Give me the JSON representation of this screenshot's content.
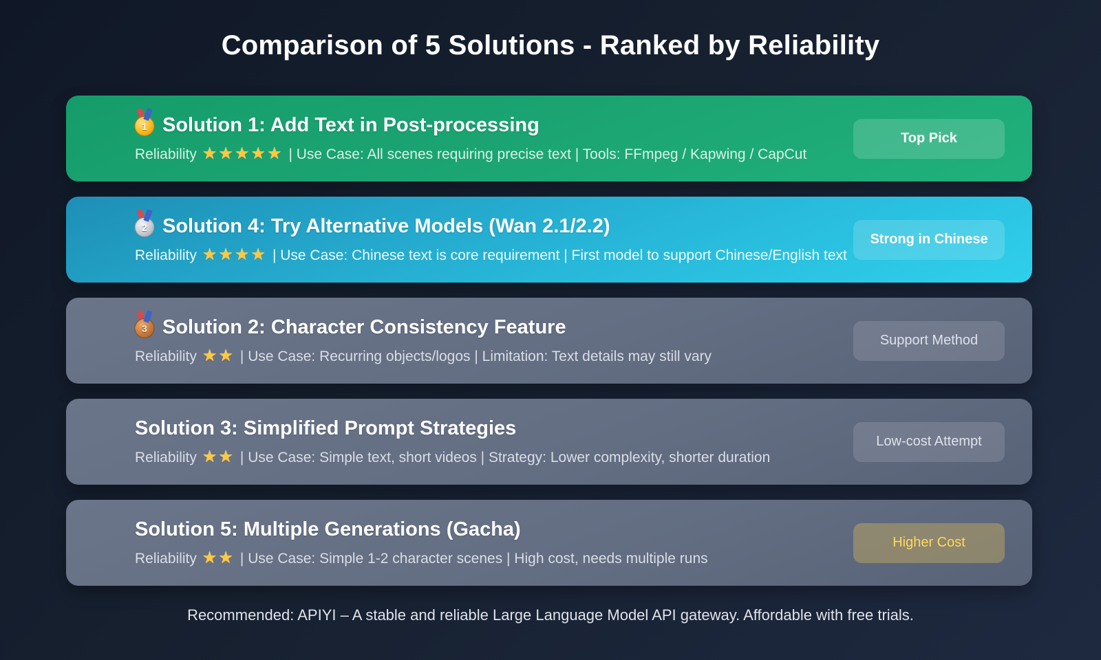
{
  "header": {
    "title": "Comparison of 5 Solutions - Ranked by Reliability"
  },
  "footer": {
    "text": "Recommended: APIYI – A stable and reliable Large Language Model API gateway. Affordable with free trials."
  },
  "colors": {
    "background": "#16202f",
    "card_green": "#1ca674",
    "card_cyan": "#27b6d8",
    "card_slate": "#636e83",
    "star": "#ffc83d",
    "badge_gold_text": "#ffd75e"
  },
  "cards": [
    {
      "medal": "gold",
      "medal_number": "1",
      "title": "Solution 1: Add Text in Post-processing",
      "reliability_label": "Reliability",
      "stars": 5,
      "details": "| Use Case: All scenes requiring precise text | Tools: FFmpeg / Kapwing / CapCut",
      "badge": "Top Pick",
      "theme": "green",
      "badge_style": "highlight"
    },
    {
      "medal": "silver",
      "medal_number": "2",
      "title": "Solution 4: Try Alternative Models (Wan 2.1/2.2)",
      "reliability_label": "Reliability",
      "stars": 4,
      "details": "| Use Case: Chinese text is core requirement | First model to support Chinese/English text",
      "badge": "Strong in Chinese",
      "theme": "cyan",
      "badge_style": "highlight"
    },
    {
      "medal": "bronze",
      "medal_number": "3",
      "title": "Solution 2: Character Consistency Feature",
      "reliability_label": "Reliability",
      "stars": 2,
      "details": "| Use Case: Recurring objects/logos | Limitation: Text details may still vary",
      "badge": "Support Method",
      "theme": "slate",
      "badge_style": "muted"
    },
    {
      "medal": null,
      "medal_number": null,
      "title": "Solution 3: Simplified Prompt Strategies",
      "reliability_label": "Reliability",
      "stars": 2,
      "details": "| Use Case: Simple text, short videos | Strategy: Lower complexity, shorter duration",
      "badge": "Low-cost Attempt",
      "theme": "slate",
      "badge_style": "muted"
    },
    {
      "medal": null,
      "medal_number": null,
      "title": "Solution 5: Multiple Generations (Gacha)",
      "reliability_label": "Reliability",
      "stars": 2,
      "details": "| Use Case: Simple 1-2 character scenes | High cost, needs multiple runs",
      "badge": "Higher Cost",
      "theme": "slate",
      "badge_style": "gold"
    }
  ]
}
